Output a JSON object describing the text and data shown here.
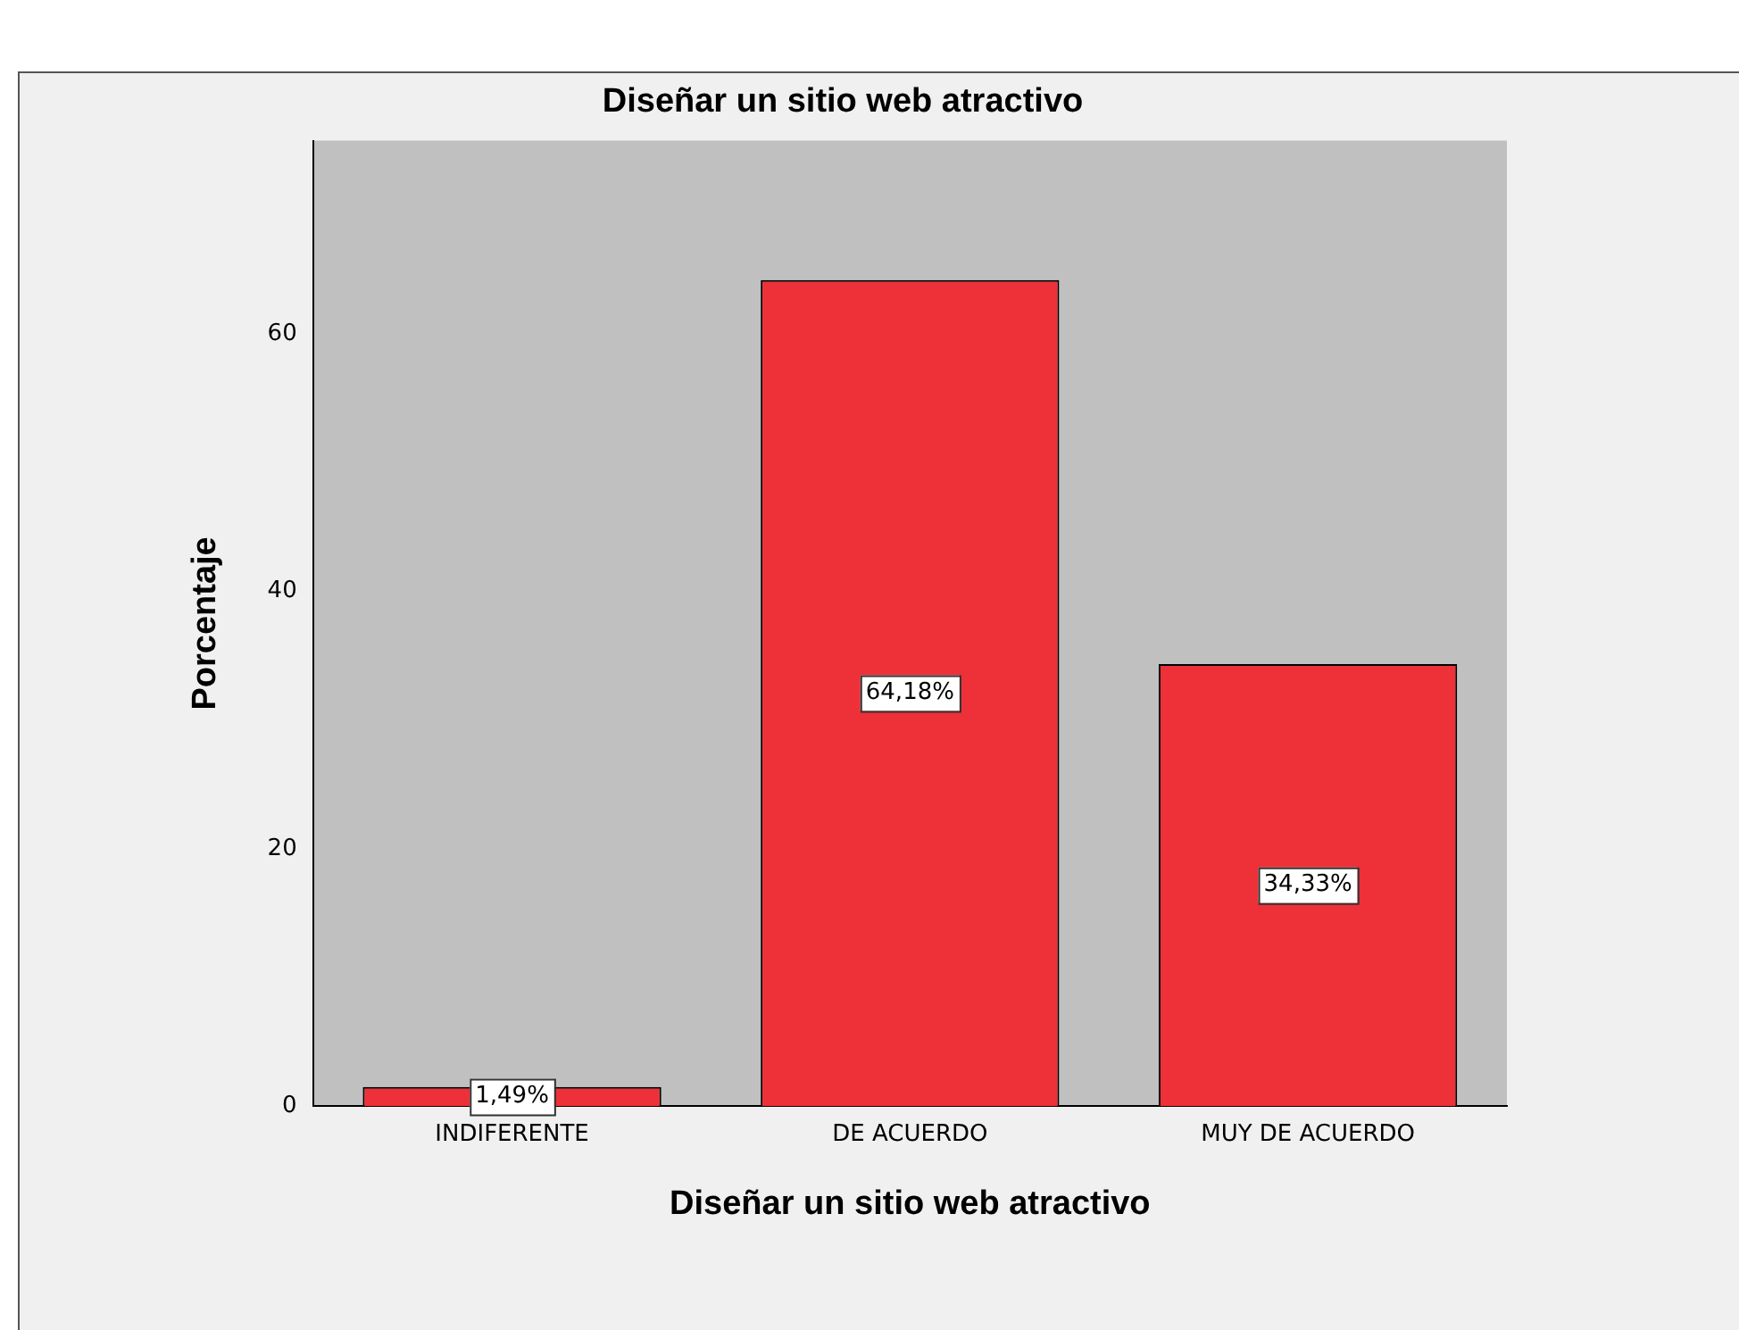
{
  "chart_data": {
    "type": "bar",
    "title": "Diseñar un sitio web atractivo",
    "xlabel": "Diseñar un sitio web atractivo",
    "ylabel": "Porcentaje",
    "categories": [
      "INDIFERENTE",
      "DE ACUERDO",
      "MUY DE ACUERDO"
    ],
    "values": [
      1.49,
      64.18,
      34.33
    ],
    "value_labels": [
      "1,49%",
      "64,18%",
      "34,33%"
    ],
    "color": "#ee3039",
    "ylim": [
      0,
      75
    ],
    "yticks": [
      0,
      20,
      40,
      60
    ],
    "grid": false,
    "legend": false
  }
}
